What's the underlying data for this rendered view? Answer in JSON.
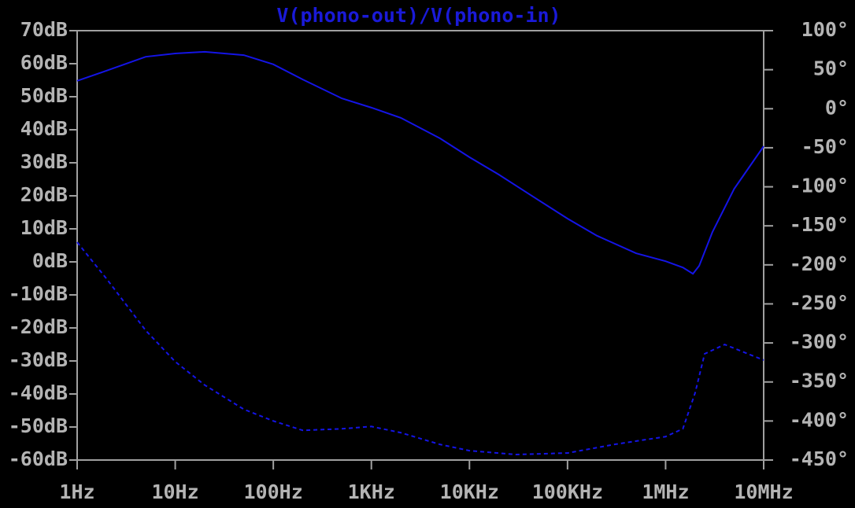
{
  "chart_data": {
    "type": "line",
    "title": "V(phono-out)/V(phono-in)",
    "xscale": "log",
    "xlim": [
      1,
      10000000
    ],
    "xticks": [
      {
        "value": 1,
        "label": "1Hz"
      },
      {
        "value": 10,
        "label": "10Hz"
      },
      {
        "value": 100,
        "label": "100Hz"
      },
      {
        "value": 1000,
        "label": "1KHz"
      },
      {
        "value": 10000,
        "label": "10KHz"
      },
      {
        "value": 100000,
        "label": "100KHz"
      },
      {
        "value": 1000000,
        "label": "1MHz"
      },
      {
        "value": 10000000,
        "label": "10MHz"
      }
    ],
    "ylim": [
      -60,
      70
    ],
    "yticks": [
      {
        "value": 70,
        "label": "70dB"
      },
      {
        "value": 60,
        "label": "60dB"
      },
      {
        "value": 50,
        "label": "50dB"
      },
      {
        "value": 40,
        "label": "40dB"
      },
      {
        "value": 30,
        "label": "30dB"
      },
      {
        "value": 20,
        "label": "20dB"
      },
      {
        "value": 10,
        "label": "10dB"
      },
      {
        "value": 0,
        "label": "0dB"
      },
      {
        "value": -10,
        "label": "-10dB"
      },
      {
        "value": -20,
        "label": "-20dB"
      },
      {
        "value": -30,
        "label": "-30dB"
      },
      {
        "value": -40,
        "label": "-40dB"
      },
      {
        "value": -50,
        "label": "-50dB"
      },
      {
        "value": -60,
        "label": "-60dB"
      }
    ],
    "y2lim": [
      -450,
      100
    ],
    "y2ticks": [
      {
        "value": 100,
        "label": "100°"
      },
      {
        "value": 50,
        "label": "50°"
      },
      {
        "value": 0,
        "label": "0°"
      },
      {
        "value": -50,
        "label": "-50°"
      },
      {
        "value": -100,
        "label": "-100°"
      },
      {
        "value": -150,
        "label": "-150°"
      },
      {
        "value": -200,
        "label": "-200°"
      },
      {
        "value": -250,
        "label": "-250°"
      },
      {
        "value": -300,
        "label": "-300°"
      },
      {
        "value": -350,
        "label": "-350°"
      },
      {
        "value": -400,
        "label": "-400°"
      },
      {
        "value": -450,
        "label": "-450°"
      }
    ],
    "series": [
      {
        "color": "#1414e6",
        "line_style": "solid",
        "axis": "y",
        "x": [
          1,
          2,
          5,
          10,
          20,
          50,
          100,
          200,
          500,
          1000,
          2000,
          5000,
          10000,
          20000,
          50000,
          100000,
          200000,
          500000,
          1000000,
          1500000,
          1900000,
          2200000,
          3000000,
          5000000,
          10000000
        ],
        "values": [
          54.8,
          57.9,
          62.1,
          63.1,
          63.6,
          62.6,
          59.8,
          55.2,
          49.5,
          46.7,
          43.6,
          37.4,
          31.7,
          26.4,
          18.8,
          13.1,
          7.9,
          2.6,
          0.2,
          -1.7,
          -3.6,
          -1.2,
          9.0,
          22.1,
          35.0
        ]
      },
      {
        "color": "#1414e6",
        "line_style": "dashed",
        "axis": "y2",
        "x": [
          1,
          2,
          5,
          10,
          20,
          50,
          100,
          200,
          500,
          1000,
          2000,
          5000,
          10000,
          30000,
          100000,
          300000,
          1000000,
          1500000,
          2000000,
          2500000,
          4000000,
          10000000
        ],
        "values": [
          -171,
          -218,
          -284,
          -324,
          -354,
          -385,
          -400,
          -412,
          -410,
          -407,
          -415,
          -430,
          -438,
          -443,
          -441,
          -430,
          -420,
          -410,
          -364,
          -314,
          -302,
          -322
        ]
      }
    ]
  }
}
